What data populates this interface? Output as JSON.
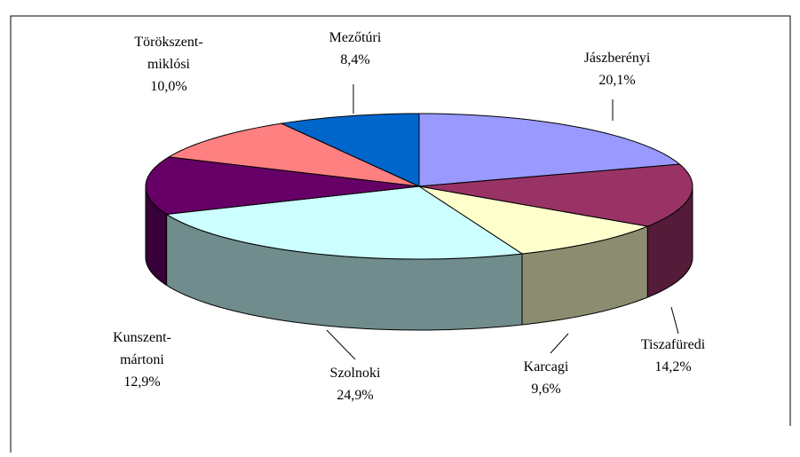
{
  "chart_data": {
    "type": "pie3d",
    "categories": [
      "Jászberényi",
      "Tiszafüredi",
      "Karcagi",
      "Szolnoki",
      "Kunszent-\nmártoni",
      "Törökszent-\nmiklósi",
      "Mezőtúri"
    ],
    "values": [
      20.1,
      14.2,
      9.6,
      24.9,
      12.9,
      10.0,
      8.4
    ],
    "value_labels": [
      "20,1%",
      "14,2%",
      "9,6%",
      "24,9%",
      "12,9%",
      "10,0%",
      "8,4%"
    ],
    "colors": [
      "#9999ff",
      "#993366",
      "#ffffcc",
      "#ccffff",
      "#660066",
      "#ff8080",
      "#0066cc"
    ]
  }
}
